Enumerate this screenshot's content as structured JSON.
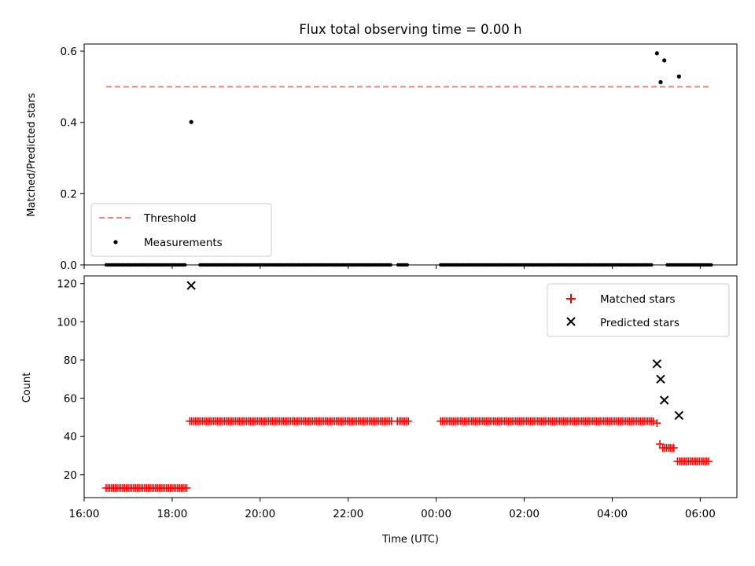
{
  "chart_data": [
    {
      "type": "scatter",
      "title": "Flux total observing time = 0.00 h",
      "xlabel": "",
      "ylabel": "Matched/Predicted stars",
      "xlim": [
        "16:00",
        "06:50"
      ],
      "ylim": [
        0,
        0.62
      ],
      "yticks": [
        0,
        0.2,
        0.4,
        0.6
      ],
      "ytick_labels": [
        "0.0",
        "0.2",
        "0.4",
        "0.6"
      ],
      "legend": {
        "placement": "lower-left",
        "entries": [
          {
            "label": "Threshold",
            "style": "dashed-line",
            "color": "#f08080"
          },
          {
            "label": "Measurements",
            "style": "dot",
            "color": "#000000"
          }
        ]
      },
      "threshold": {
        "value": 0.5,
        "x_start": "16:30",
        "x_end": "06:15"
      },
      "measurements_nonzero": [
        {
          "x": "18:26",
          "y": 0.401
        },
        {
          "x": "05:01",
          "y": 0.594
        },
        {
          "x": "05:06",
          "y": 0.513
        },
        {
          "x": "05:11",
          "y": 0.574
        },
        {
          "x": "05:31",
          "y": 0.529
        }
      ],
      "measurements_zero_ranges": [
        {
          "start": "16:30",
          "end": "18:18",
          "y": 0
        },
        {
          "start": "18:38",
          "end": "23:00",
          "y": 0
        },
        {
          "start": "23:08",
          "end": "23:22",
          "y": 0
        },
        {
          "start": "00:06",
          "end": "04:55",
          "y": 0
        },
        {
          "start": "05:15",
          "end": "06:15",
          "y": 0
        }
      ]
    },
    {
      "type": "scatter",
      "title": "",
      "xlabel": "Time (UTC)",
      "ylabel": "Count",
      "xlim": [
        "16:00",
        "06:50"
      ],
      "ylim": [
        8,
        124
      ],
      "yticks": [
        20,
        40,
        60,
        80,
        100,
        120
      ],
      "xticks": [
        "16:00",
        "18:00",
        "20:00",
        "22:00",
        "00:00",
        "02:00",
        "04:00",
        "06:00"
      ],
      "legend": {
        "placement": "upper-right",
        "entries": [
          {
            "label": "Matched stars",
            "marker": "plus",
            "color": "#ff0000"
          },
          {
            "label": "Predicted stars",
            "marker": "x",
            "color": "#000000"
          }
        ]
      },
      "matched_ranges": [
        {
          "start": "16:30",
          "end": "18:20",
          "y": 13
        },
        {
          "start": "18:24",
          "end": "23:00",
          "y": 48
        },
        {
          "start": "23:07",
          "end": "23:22",
          "y": 48
        },
        {
          "start": "00:06",
          "end": "04:57",
          "y": 48
        },
        {
          "start": "05:01",
          "end": "05:01",
          "y": 47
        },
        {
          "start": "05:05",
          "end": "05:05",
          "y": 36
        },
        {
          "start": "05:09",
          "end": "05:24",
          "y": 34
        },
        {
          "start": "05:29",
          "end": "06:13",
          "y": 27
        }
      ],
      "predicted": [
        {
          "x": "18:26",
          "y": 119
        },
        {
          "x": "05:01",
          "y": 78
        },
        {
          "x": "05:06",
          "y": 70
        },
        {
          "x": "05:11",
          "y": 59
        },
        {
          "x": "05:31",
          "y": 51
        }
      ]
    }
  ]
}
